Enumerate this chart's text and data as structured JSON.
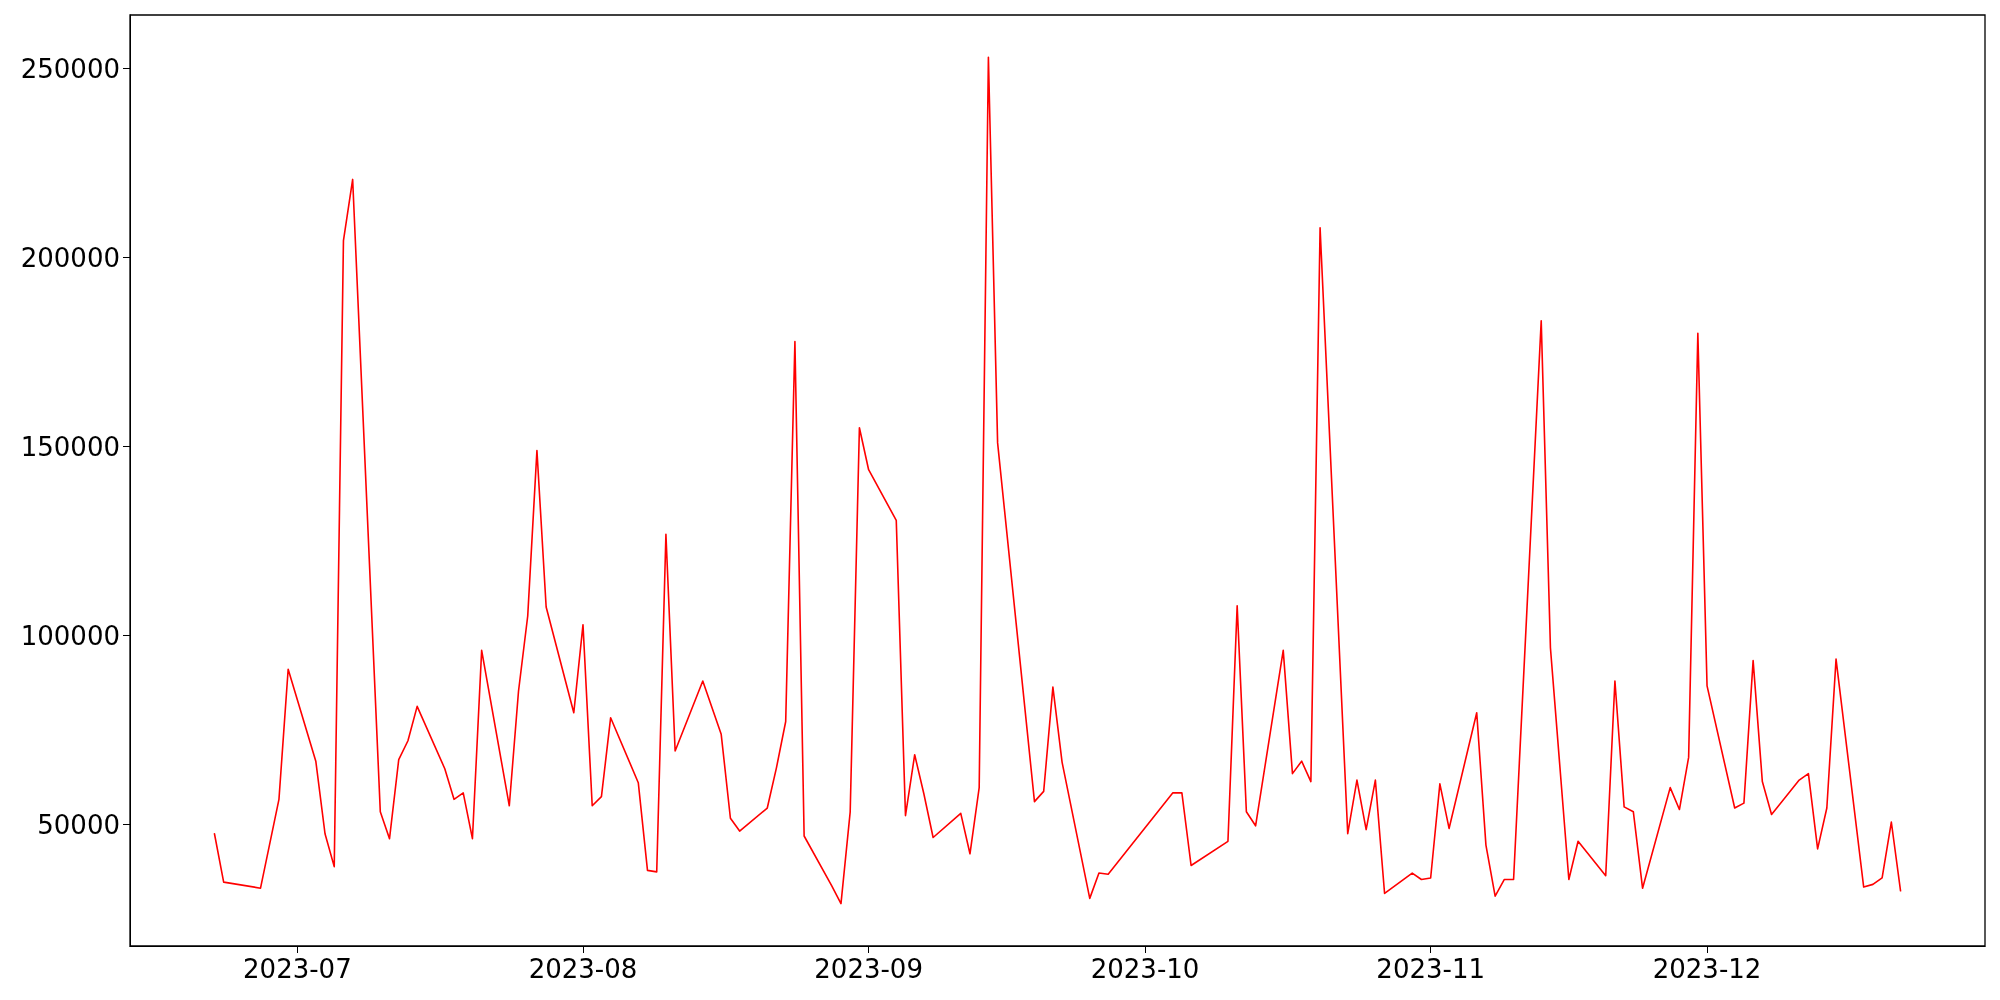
{
  "chart_data": {
    "type": "line",
    "x": [
      "2023-06-22",
      "2023-06-23",
      "2023-06-27",
      "2023-06-29",
      "2023-06-30",
      "2023-07-03",
      "2023-07-04",
      "2023-07-05",
      "2023-07-06",
      "2023-07-07",
      "2023-07-10",
      "2023-07-11",
      "2023-07-12",
      "2023-07-13",
      "2023-07-14",
      "2023-07-17",
      "2023-07-18",
      "2023-07-19",
      "2023-07-20",
      "2023-07-21",
      "2023-07-24",
      "2023-07-25",
      "2023-07-26",
      "2023-07-27",
      "2023-07-28",
      "2023-07-31",
      "2023-08-01",
      "2023-08-02",
      "2023-08-03",
      "2023-08-04",
      "2023-08-07",
      "2023-08-08",
      "2023-08-09",
      "2023-08-10",
      "2023-08-11",
      "2023-08-14",
      "2023-08-16",
      "2023-08-17",
      "2023-08-18",
      "2023-08-21",
      "2023-08-22",
      "2023-08-23",
      "2023-08-24",
      "2023-08-25",
      "2023-08-28",
      "2023-08-29",
      "2023-08-30",
      "2023-08-31",
      "2023-09-01",
      "2023-09-04",
      "2023-09-05",
      "2023-09-06",
      "2023-09-07",
      "2023-09-08",
      "2023-09-11",
      "2023-09-12",
      "2023-09-13",
      "2023-09-14",
      "2023-09-15",
      "2023-09-19",
      "2023-09-20",
      "2023-09-21",
      "2023-09-22",
      "2023-09-25",
      "2023-09-26",
      "2023-09-27",
      "2023-10-04",
      "2023-10-05",
      "2023-10-06",
      "2023-10-10",
      "2023-10-11",
      "2023-10-12",
      "2023-10-13",
      "2023-10-16",
      "2023-10-17",
      "2023-10-18",
      "2023-10-19",
      "2023-10-20",
      "2023-10-23",
      "2023-10-24",
      "2023-10-25",
      "2023-10-26",
      "2023-10-27",
      "2023-10-30",
      "2023-10-31",
      "2023-11-01",
      "2023-11-02",
      "2023-11-03",
      "2023-11-06",
      "2023-11-07",
      "2023-11-08",
      "2023-11-09",
      "2023-11-10",
      "2023-11-13",
      "2023-11-14",
      "2023-11-16",
      "2023-11-17",
      "2023-11-20",
      "2023-11-21",
      "2023-11-22",
      "2023-11-23",
      "2023-11-24",
      "2023-11-27",
      "2023-11-28",
      "2023-11-29",
      "2023-11-30",
      "2023-12-01",
      "2023-12-04",
      "2023-12-05",
      "2023-12-06",
      "2023-12-07",
      "2023-12-08",
      "2023-12-11",
      "2023-12-12",
      "2023-12-13",
      "2023-12-14",
      "2023-12-15",
      "2023-12-18",
      "2023-12-19",
      "2023-12-20",
      "2023-12-21",
      "2023-12-22"
    ],
    "series": [
      {
        "color": "#ff0000",
        "values": [
          47600,
          34800,
          33200,
          56700,
          91100,
          66800,
          47600,
          38900,
          204500,
          220700,
          53400,
          46300,
          67200,
          72200,
          81300,
          64800,
          56700,
          58400,
          46300,
          96100,
          55000,
          85300,
          105200,
          149000,
          107600,
          79600,
          102900,
          55000,
          57400,
          78300,
          61100,
          37900,
          37500,
          126800,
          69500,
          88000,
          73900,
          51700,
          48300,
          54400,
          65100,
          77300,
          177800,
          47000,
          33800,
          29100,
          53400,
          155000,
          143900,
          130500,
          52400,
          68500,
          58100,
          46600,
          53000,
          42300,
          59800,
          253000,
          151000,
          56100,
          58800,
          86400,
          66500,
          30500,
          37200,
          36900,
          58400,
          58400,
          39200,
          45600,
          107900,
          53400,
          49700,
          96100,
          63500,
          66800,
          61400,
          207900,
          47600,
          61800,
          48700,
          61800,
          31800,
          37200,
          35500,
          35900,
          60800,
          49000,
          79600,
          44600,
          31100,
          35500,
          35500,
          183300,
          96800,
          35500,
          45600,
          36500,
          88000,
          54700,
          53400,
          33200,
          59800,
          54000,
          67800,
          180000,
          86700,
          54400,
          55700,
          93400,
          61400,
          52700,
          61800,
          63500,
          43600,
          54400,
          93800,
          33500,
          34200,
          35900,
          50700,
          32500
        ]
      }
    ],
    "xlim": [
      "2023-06-12T20:00",
      "2023-12-31T04:00"
    ],
    "xticks": [
      "2023-07",
      "2023-08",
      "2023-09",
      "2023-10",
      "2023-11",
      "2023-12"
    ],
    "ylim": [
      17900,
      264200
    ],
    "yticks": [
      50000,
      100000,
      150000,
      200000,
      250000
    ],
    "grid": false,
    "marker": "none",
    "line_style": "solid"
  }
}
